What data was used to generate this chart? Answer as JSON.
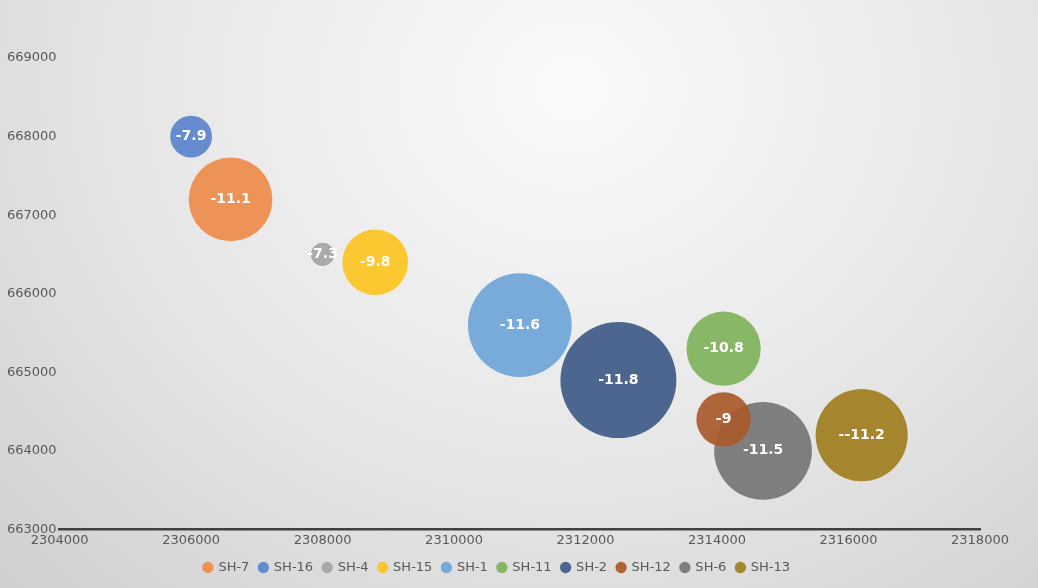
{
  "chart_data": {
    "type": "bubble",
    "xlim": [
      2304000,
      2318000
    ],
    "xticks": [
      2304000,
      2306000,
      2308000,
      2310000,
      2312000,
      2314000,
      2316000,
      2318000
    ],
    "ylim": [
      663000,
      669000
    ],
    "yticks": [
      663000,
      664000,
      665000,
      666000,
      667000,
      668000,
      669000
    ],
    "legend": "bottom",
    "series": [
      {
        "name": "SH-7",
        "color": "#ed8c4c",
        "x": [
          2306600
        ],
        "values": [
          667200
        ],
        "sizes": [
          0.52
        ]
      },
      {
        "name": "SH-16",
        "color": "#5b84cc",
        "x": [
          2306000
        ],
        "values": [
          668000
        ],
        "sizes": [
          0.13
        ]
      },
      {
        "name": "SH-4",
        "color": "#a5a5a5",
        "x": [
          2308000
        ],
        "values": [
          666500
        ],
        "sizes": [
          0.04
        ]
      },
      {
        "name": "SH-15",
        "color": "#fcc524",
        "x": [
          2308800
        ],
        "values": [
          666400
        ],
        "sizes": [
          0.32
        ]
      },
      {
        "name": "SH-1",
        "color": "#6fa6d8",
        "x": [
          2311000
        ],
        "values": [
          665600
        ],
        "sizes": [
          0.8
        ]
      },
      {
        "name": "SH-11",
        "color": "#80b45c",
        "x": [
          2314100
        ],
        "values": [
          665300
        ],
        "sizes": [
          0.41
        ]
      },
      {
        "name": "SH-2",
        "color": "#3f5b88",
        "x": [
          2312500
        ],
        "values": [
          664900
        ],
        "sizes": [
          1
        ]
      },
      {
        "name": "SH-12",
        "color": "#a85a2b",
        "x": [
          2314100
        ],
        "values": [
          664400
        ],
        "sizes": [
          0.22
        ]
      },
      {
        "name": "SH-6",
        "color": "#767676",
        "x": [
          2314700
        ],
        "values": [
          664000
        ],
        "sizes": [
          0.71
        ]
      },
      {
        "name": "SH-13",
        "color": "#a07f20",
        "x": [
          2316200
        ],
        "values": [
          664200
        ],
        "sizes": [
          0.63
        ]
      }
    ],
    "annotations": [
      {
        "text": "-11.1",
        "x": 2306600,
        "y": 667200
      },
      {
        "text": "-7.9",
        "x": 2306000,
        "y": 668000
      },
      {
        "text": "-7.3",
        "x": 2308000,
        "y": 666500
      },
      {
        "text": "-9.8",
        "x": 2308800,
        "y": 666400
      },
      {
        "text": "-11.6",
        "x": 2311000,
        "y": 665600
      },
      {
        "text": "-10.8",
        "x": 2314100,
        "y": 665300
      },
      {
        "text": "-11.8",
        "x": 2312500,
        "y": 664900
      },
      {
        "text": "-9",
        "x": 2314100,
        "y": 664400
      },
      {
        "text": "-11.5",
        "x": 2314700,
        "y": 664000
      },
      {
        "text": "--11.2",
        "x": 2316200,
        "y": 664200
      }
    ]
  }
}
